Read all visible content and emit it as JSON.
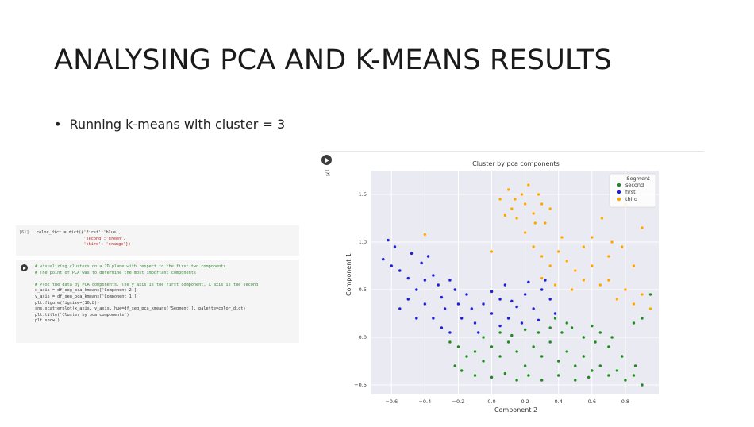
{
  "slide": {
    "title": "ANALYSING PCA AND K-MEANS RESULTS",
    "bullet": "Running k-means with cluster = 3"
  },
  "cell1": {
    "prompt": "[61]",
    "lines": [
      "color_dict = dict({'first':'blue',",
      "                   'second':'green',",
      "                   'third': 'orange'})"
    ]
  },
  "cell2": {
    "lines": [
      "# visualizing clusters on a 2D plane with respect to the first two components",
      "# The point of PCA was to determine the most important components",
      "",
      "# Plot the data by PCA components. The y axis is the first component, X axis is the second",
      "x_axis = df_seg_pca_kmeans['Component 2']",
      "y_axis = df_seg_pca_kmeans['Component 1']",
      "plt.figure(figsize=(10,8))",
      "sns.scatterplot(x_axis, y_axis, hue=df_seg_pca_kmeans['Segment'], palette=color_dict)",
      "plt.title('Cluster by pca components')",
      "plt.show()"
    ]
  },
  "chart_data": {
    "type": "scatter",
    "title": "Cluster by pca components",
    "xlabel": "Component 2",
    "ylabel": "Component 1",
    "xlim": [
      -0.72,
      1.0
    ],
    "ylim": [
      -0.6,
      1.75
    ],
    "xticks": [
      "−0.6",
      "−0.4",
      "−0.2",
      "0.0",
      "0.2",
      "0.4",
      "0.6",
      "0.8"
    ],
    "xtick_values": [
      -0.6,
      -0.4,
      -0.2,
      0.0,
      0.2,
      0.4,
      0.6,
      0.8
    ],
    "yticks": [
      "−0.5",
      "0.0",
      "0.5",
      "1.0",
      "1.5"
    ],
    "ytick_values": [
      -0.5,
      0.0,
      0.5,
      1.0,
      1.5
    ],
    "grid": true,
    "legend": {
      "title": "Segment",
      "placement": "top-right",
      "entries": [
        {
          "name": "second",
          "color": "#1f8a1f"
        },
        {
          "name": "first",
          "color": "#1f1fd6"
        },
        {
          "name": "third",
          "color": "#ffa500"
        }
      ]
    },
    "series": [
      {
        "name": "second",
        "color": "#1f8a1f",
        "points": [
          [
            -0.25,
            -0.05
          ],
          [
            -0.2,
            -0.1
          ],
          [
            -0.15,
            -0.2
          ],
          [
            -0.1,
            -0.15
          ],
          [
            -0.05,
            -0.25
          ],
          [
            0.0,
            -0.1
          ],
          [
            0.05,
            -0.2
          ],
          [
            0.1,
            -0.05
          ],
          [
            0.15,
            -0.15
          ],
          [
            0.2,
            -0.3
          ],
          [
            0.25,
            -0.1
          ],
          [
            0.3,
            -0.2
          ],
          [
            0.35,
            -0.05
          ],
          [
            0.4,
            -0.25
          ],
          [
            0.45,
            -0.15
          ],
          [
            0.5,
            -0.3
          ],
          [
            0.55,
            -0.2
          ],
          [
            0.6,
            -0.35
          ],
          [
            0.65,
            -0.3
          ],
          [
            0.7,
            -0.4
          ],
          [
            0.75,
            -0.35
          ],
          [
            0.8,
            -0.45
          ],
          [
            0.85,
            -0.4
          ],
          [
            0.9,
            -0.5
          ],
          [
            -0.22,
            -0.3
          ],
          [
            -0.18,
            -0.35
          ],
          [
            -0.1,
            -0.4
          ],
          [
            0.0,
            -0.42
          ],
          [
            0.08,
            -0.38
          ],
          [
            0.15,
            -0.45
          ],
          [
            0.22,
            -0.4
          ],
          [
            0.3,
            -0.45
          ],
          [
            -0.05,
            0.0
          ],
          [
            0.05,
            0.05
          ],
          [
            0.12,
            0.02
          ],
          [
            0.2,
            0.08
          ],
          [
            0.28,
            0.05
          ],
          [
            0.35,
            0.1
          ],
          [
            0.42,
            0.05
          ],
          [
            0.48,
            0.1
          ],
          [
            0.55,
            0.0
          ],
          [
            0.62,
            -0.05
          ],
          [
            0.7,
            -0.1
          ],
          [
            0.78,
            -0.2
          ],
          [
            0.86,
            -0.3
          ],
          [
            0.9,
            0.2
          ],
          [
            0.85,
            0.15
          ],
          [
            0.95,
            0.45
          ],
          [
            0.45,
            0.15
          ],
          [
            0.38,
            0.2
          ],
          [
            0.6,
            0.12
          ],
          [
            0.65,
            0.05
          ],
          [
            0.72,
            0.0
          ],
          [
            0.5,
            -0.45
          ],
          [
            0.4,
            -0.4
          ],
          [
            0.58,
            -0.42
          ]
        ]
      },
      {
        "name": "first",
        "color": "#1f1fd6",
        "points": [
          [
            -0.65,
            0.82
          ],
          [
            -0.62,
            1.02
          ],
          [
            -0.58,
            0.95
          ],
          [
            -0.55,
            0.7
          ],
          [
            -0.5,
            0.62
          ],
          [
            -0.45,
            0.5
          ],
          [
            -0.42,
            0.78
          ],
          [
            -0.38,
            0.85
          ],
          [
            -0.35,
            0.65
          ],
          [
            -0.32,
            0.55
          ],
          [
            -0.3,
            0.42
          ],
          [
            -0.28,
            0.3
          ],
          [
            -0.25,
            0.6
          ],
          [
            -0.22,
            0.5
          ],
          [
            -0.2,
            0.35
          ],
          [
            -0.18,
            0.2
          ],
          [
            -0.15,
            0.45
          ],
          [
            -0.12,
            0.3
          ],
          [
            -0.1,
            0.15
          ],
          [
            -0.05,
            0.35
          ],
          [
            0.0,
            0.25
          ],
          [
            0.05,
            0.4
          ],
          [
            0.1,
            0.2
          ],
          [
            0.15,
            0.32
          ],
          [
            0.2,
            0.45
          ],
          [
            0.25,
            0.3
          ],
          [
            0.3,
            0.5
          ],
          [
            0.35,
            0.4
          ],
          [
            0.38,
            0.25
          ],
          [
            -0.4,
            0.35
          ],
          [
            -0.35,
            0.2
          ],
          [
            -0.3,
            0.1
          ],
          [
            -0.25,
            0.05
          ],
          [
            -0.45,
            0.2
          ],
          [
            -0.5,
            0.4
          ],
          [
            -0.55,
            0.3
          ],
          [
            -0.6,
            0.75
          ],
          [
            -0.48,
            0.88
          ],
          [
            -0.4,
            0.6
          ],
          [
            0.0,
            0.48
          ],
          [
            0.08,
            0.55
          ],
          [
            0.12,
            0.38
          ],
          [
            -0.08,
            0.05
          ],
          [
            0.05,
            0.12
          ],
          [
            0.18,
            0.15
          ],
          [
            0.28,
            0.18
          ],
          [
            0.32,
            0.6
          ],
          [
            0.22,
            0.58
          ]
        ]
      },
      {
        "name": "third",
        "color": "#ffa500",
        "points": [
          [
            0.05,
            1.45
          ],
          [
            0.1,
            1.55
          ],
          [
            0.12,
            1.35
          ],
          [
            0.15,
            1.25
          ],
          [
            0.18,
            1.5
          ],
          [
            0.2,
            1.4
          ],
          [
            0.22,
            1.6
          ],
          [
            0.25,
            1.3
          ],
          [
            0.28,
            1.5
          ],
          [
            0.3,
            1.4
          ],
          [
            0.32,
            1.2
          ],
          [
            0.35,
            1.35
          ],
          [
            0.08,
            1.28
          ],
          [
            0.14,
            1.45
          ],
          [
            0.26,
            1.2
          ],
          [
            0.2,
            1.1
          ],
          [
            0.25,
            0.95
          ],
          [
            0.3,
            0.85
          ],
          [
            0.35,
            0.75
          ],
          [
            0.4,
            0.9
          ],
          [
            0.42,
            1.05
          ],
          [
            0.45,
            0.8
          ],
          [
            0.5,
            0.7
          ],
          [
            0.55,
            0.6
          ],
          [
            0.6,
            0.75
          ],
          [
            0.65,
            0.55
          ],
          [
            0.7,
            0.6
          ],
          [
            0.75,
            0.4
          ],
          [
            0.8,
            0.5
          ],
          [
            0.85,
            0.35
          ],
          [
            0.9,
            0.45
          ],
          [
            0.95,
            0.3
          ],
          [
            0.7,
            0.85
          ],
          [
            0.78,
            0.95
          ],
          [
            0.6,
            1.05
          ],
          [
            0.66,
            1.25
          ],
          [
            0.72,
            1.0
          ],
          [
            0.85,
            0.75
          ],
          [
            0.8,
            1.4
          ],
          [
            0.9,
            1.15
          ],
          [
            -0.4,
            1.08
          ],
          [
            0.0,
            0.9
          ],
          [
            0.3,
            0.62
          ],
          [
            0.38,
            0.55
          ],
          [
            0.55,
            0.95
          ],
          [
            0.48,
            0.5
          ]
        ]
      }
    ]
  }
}
